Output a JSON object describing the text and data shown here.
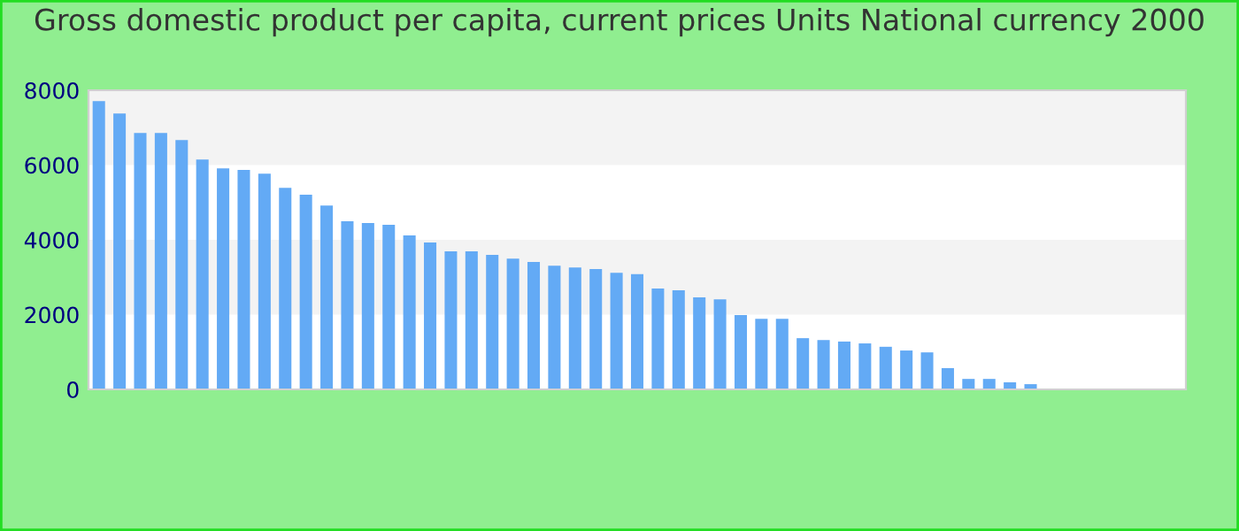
{
  "chart_data": {
    "type": "bar",
    "title": "Gross domestic product per capita, current prices Units National currency 2000",
    "categories": [
      null,
      null,
      null,
      null,
      null,
      null,
      null,
      null,
      null,
      null,
      null,
      null,
      null,
      null,
      null,
      null,
      null,
      null,
      null,
      null,
      null,
      null,
      null,
      null,
      null,
      null,
      null,
      null,
      null,
      null,
      null,
      null,
      null,
      null,
      null,
      null,
      null,
      null,
      null,
      null,
      null,
      null,
      null,
      null,
      null,
      null,
      null,
      null,
      null,
      null,
      null,
      null,
      null
    ],
    "values": [
      7710,
      7380,
      6860,
      6860,
      6670,
      6150,
      5910,
      5870,
      5770,
      5390,
      5210,
      4920,
      4500,
      4450,
      4400,
      4120,
      3930,
      3690,
      3690,
      3600,
      3500,
      3410,
      3310,
      3260,
      3220,
      3120,
      3080,
      2700,
      2650,
      2460,
      2410,
      1990,
      1890,
      1890,
      1370,
      1320,
      1280,
      1230,
      1140,
      1040,
      990,
      570,
      280,
      280,
      190,
      140,
      null,
      null,
      null,
      null,
      null,
      null,
      null
    ],
    "color": "#63aaf5",
    "ylim": [
      0,
      8000
    ],
    "yticks": [
      0,
      2000,
      4000,
      6000,
      8000
    ],
    "bands": [
      {
        "axis": "y",
        "from": 2000,
        "to": 4000,
        "label": null,
        "color": "#f3f3f3"
      },
      {
        "axis": "y",
        "from": 6000,
        "to": 8000,
        "label": null,
        "color": "#f3f3f3"
      }
    ]
  }
}
